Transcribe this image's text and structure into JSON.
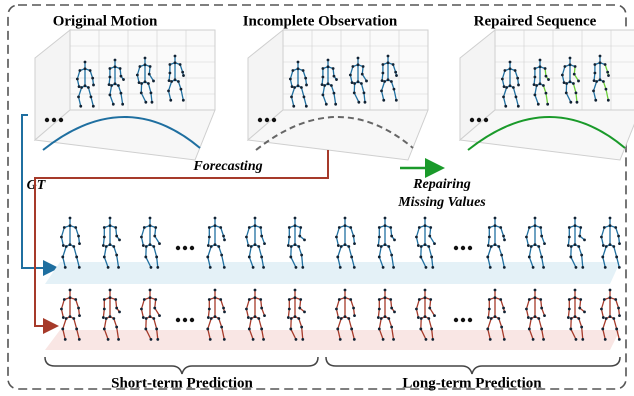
{
  "panels": [
    {
      "title": "Original Motion"
    },
    {
      "title": "Incomplete Observation"
    },
    {
      "title": "Repaired Sequence"
    }
  ],
  "labels": {
    "gt": "GT",
    "forecasting": "Forecasting",
    "repairing": [
      "Repairing",
      "Missing Values"
    ]
  },
  "braces": [
    {
      "label": "Short-term Prediction"
    },
    {
      "label": "Long-term Prediction"
    }
  ]
}
